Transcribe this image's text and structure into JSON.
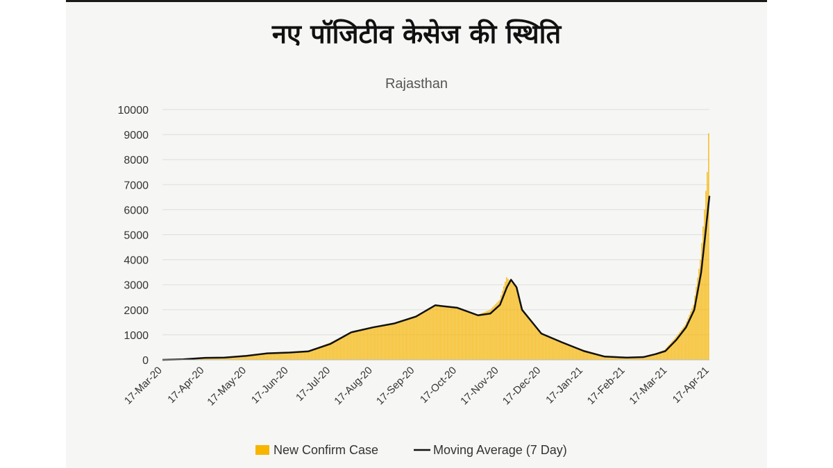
{
  "headline": "नए पॉजिटीव केसेज की स्थिति",
  "colors": {
    "bar": "#f7b500",
    "line": "#111111",
    "grid": "#dddddd"
  },
  "chart_data": {
    "type": "bar",
    "title": "Rajasthan",
    "xlabel": "",
    "ylabel": "",
    "ylim": [
      0,
      10000
    ],
    "yticks": [
      0,
      1000,
      2000,
      3000,
      4000,
      5000,
      6000,
      7000,
      8000,
      9000,
      10000
    ],
    "xtick_labels": [
      "17-Mar-20",
      "17-Apr-20",
      "17-May-20",
      "17-Jun-20",
      "17-Jul-20",
      "17-Aug-20",
      "17-Sep-20",
      "17-Oct-20",
      "17-Nov-20",
      "17-Dec-20",
      "17-Jan-21",
      "17-Feb-21",
      "17-Mar-21",
      "17-Apr-21"
    ],
    "grid": true,
    "legend_position": "bottom",
    "series": [
      {
        "name": "New Confirm Case",
        "type": "bar",
        "points": [
          [
            "2020-03-17",
            0
          ],
          [
            "2020-04-01",
            30
          ],
          [
            "2020-04-17",
            90
          ],
          [
            "2020-05-01",
            100
          ],
          [
            "2020-05-17",
            180
          ],
          [
            "2020-06-01",
            280
          ],
          [
            "2020-06-17",
            300
          ],
          [
            "2020-07-01",
            350
          ],
          [
            "2020-07-17",
            700
          ],
          [
            "2020-08-01",
            1100
          ],
          [
            "2020-08-17",
            1300
          ],
          [
            "2020-09-01",
            1450
          ],
          [
            "2020-09-17",
            1750
          ],
          [
            "2020-10-01",
            2200
          ],
          [
            "2020-10-17",
            2100
          ],
          [
            "2020-11-01",
            1800
          ],
          [
            "2020-11-10",
            2000
          ],
          [
            "2020-11-17",
            2400
          ],
          [
            "2020-11-22",
            3300
          ],
          [
            "2020-11-29",
            2900
          ],
          [
            "2020-12-03",
            2000
          ],
          [
            "2020-12-17",
            1100
          ],
          [
            "2021-01-01",
            700
          ],
          [
            "2021-01-17",
            400
          ],
          [
            "2021-02-01",
            150
          ],
          [
            "2021-02-17",
            100
          ],
          [
            "2021-03-01",
            120
          ],
          [
            "2021-03-10",
            250
          ],
          [
            "2021-03-17",
            400
          ],
          [
            "2021-03-25",
            900
          ],
          [
            "2021-04-01",
            1400
          ],
          [
            "2021-04-07",
            2200
          ],
          [
            "2021-04-12",
            4000
          ],
          [
            "2021-04-15",
            6000
          ],
          [
            "2021-04-17",
            7500
          ],
          [
            "2021-04-18",
            9050
          ]
        ]
      },
      {
        "name": "Moving Average (7 Day)",
        "type": "line",
        "points": [
          [
            "2020-03-17",
            0
          ],
          [
            "2020-04-01",
            20
          ],
          [
            "2020-04-17",
            80
          ],
          [
            "2020-05-01",
            90
          ],
          [
            "2020-05-17",
            160
          ],
          [
            "2020-06-01",
            260
          ],
          [
            "2020-06-17",
            290
          ],
          [
            "2020-07-01",
            340
          ],
          [
            "2020-07-17",
            640
          ],
          [
            "2020-08-01",
            1100
          ],
          [
            "2020-08-17",
            1300
          ],
          [
            "2020-09-01",
            1450
          ],
          [
            "2020-09-17",
            1730
          ],
          [
            "2020-10-01",
            2180
          ],
          [
            "2020-10-17",
            2080
          ],
          [
            "2020-11-01",
            1780
          ],
          [
            "2020-11-10",
            1850
          ],
          [
            "2020-11-17",
            2200
          ],
          [
            "2020-11-22",
            2900
          ],
          [
            "2020-11-25",
            3200
          ],
          [
            "2020-11-29",
            2900
          ],
          [
            "2020-12-03",
            2000
          ],
          [
            "2020-12-17",
            1050
          ],
          [
            "2021-01-01",
            700
          ],
          [
            "2021-01-17",
            350
          ],
          [
            "2021-02-01",
            130
          ],
          [
            "2021-02-17",
            90
          ],
          [
            "2021-03-01",
            110
          ],
          [
            "2021-03-10",
            230
          ],
          [
            "2021-03-17",
            350
          ],
          [
            "2021-03-25",
            800
          ],
          [
            "2021-04-01",
            1300
          ],
          [
            "2021-04-07",
            2000
          ],
          [
            "2021-04-12",
            3500
          ],
          [
            "2021-04-15",
            5000
          ],
          [
            "2021-04-18",
            6550
          ]
        ]
      }
    ]
  }
}
